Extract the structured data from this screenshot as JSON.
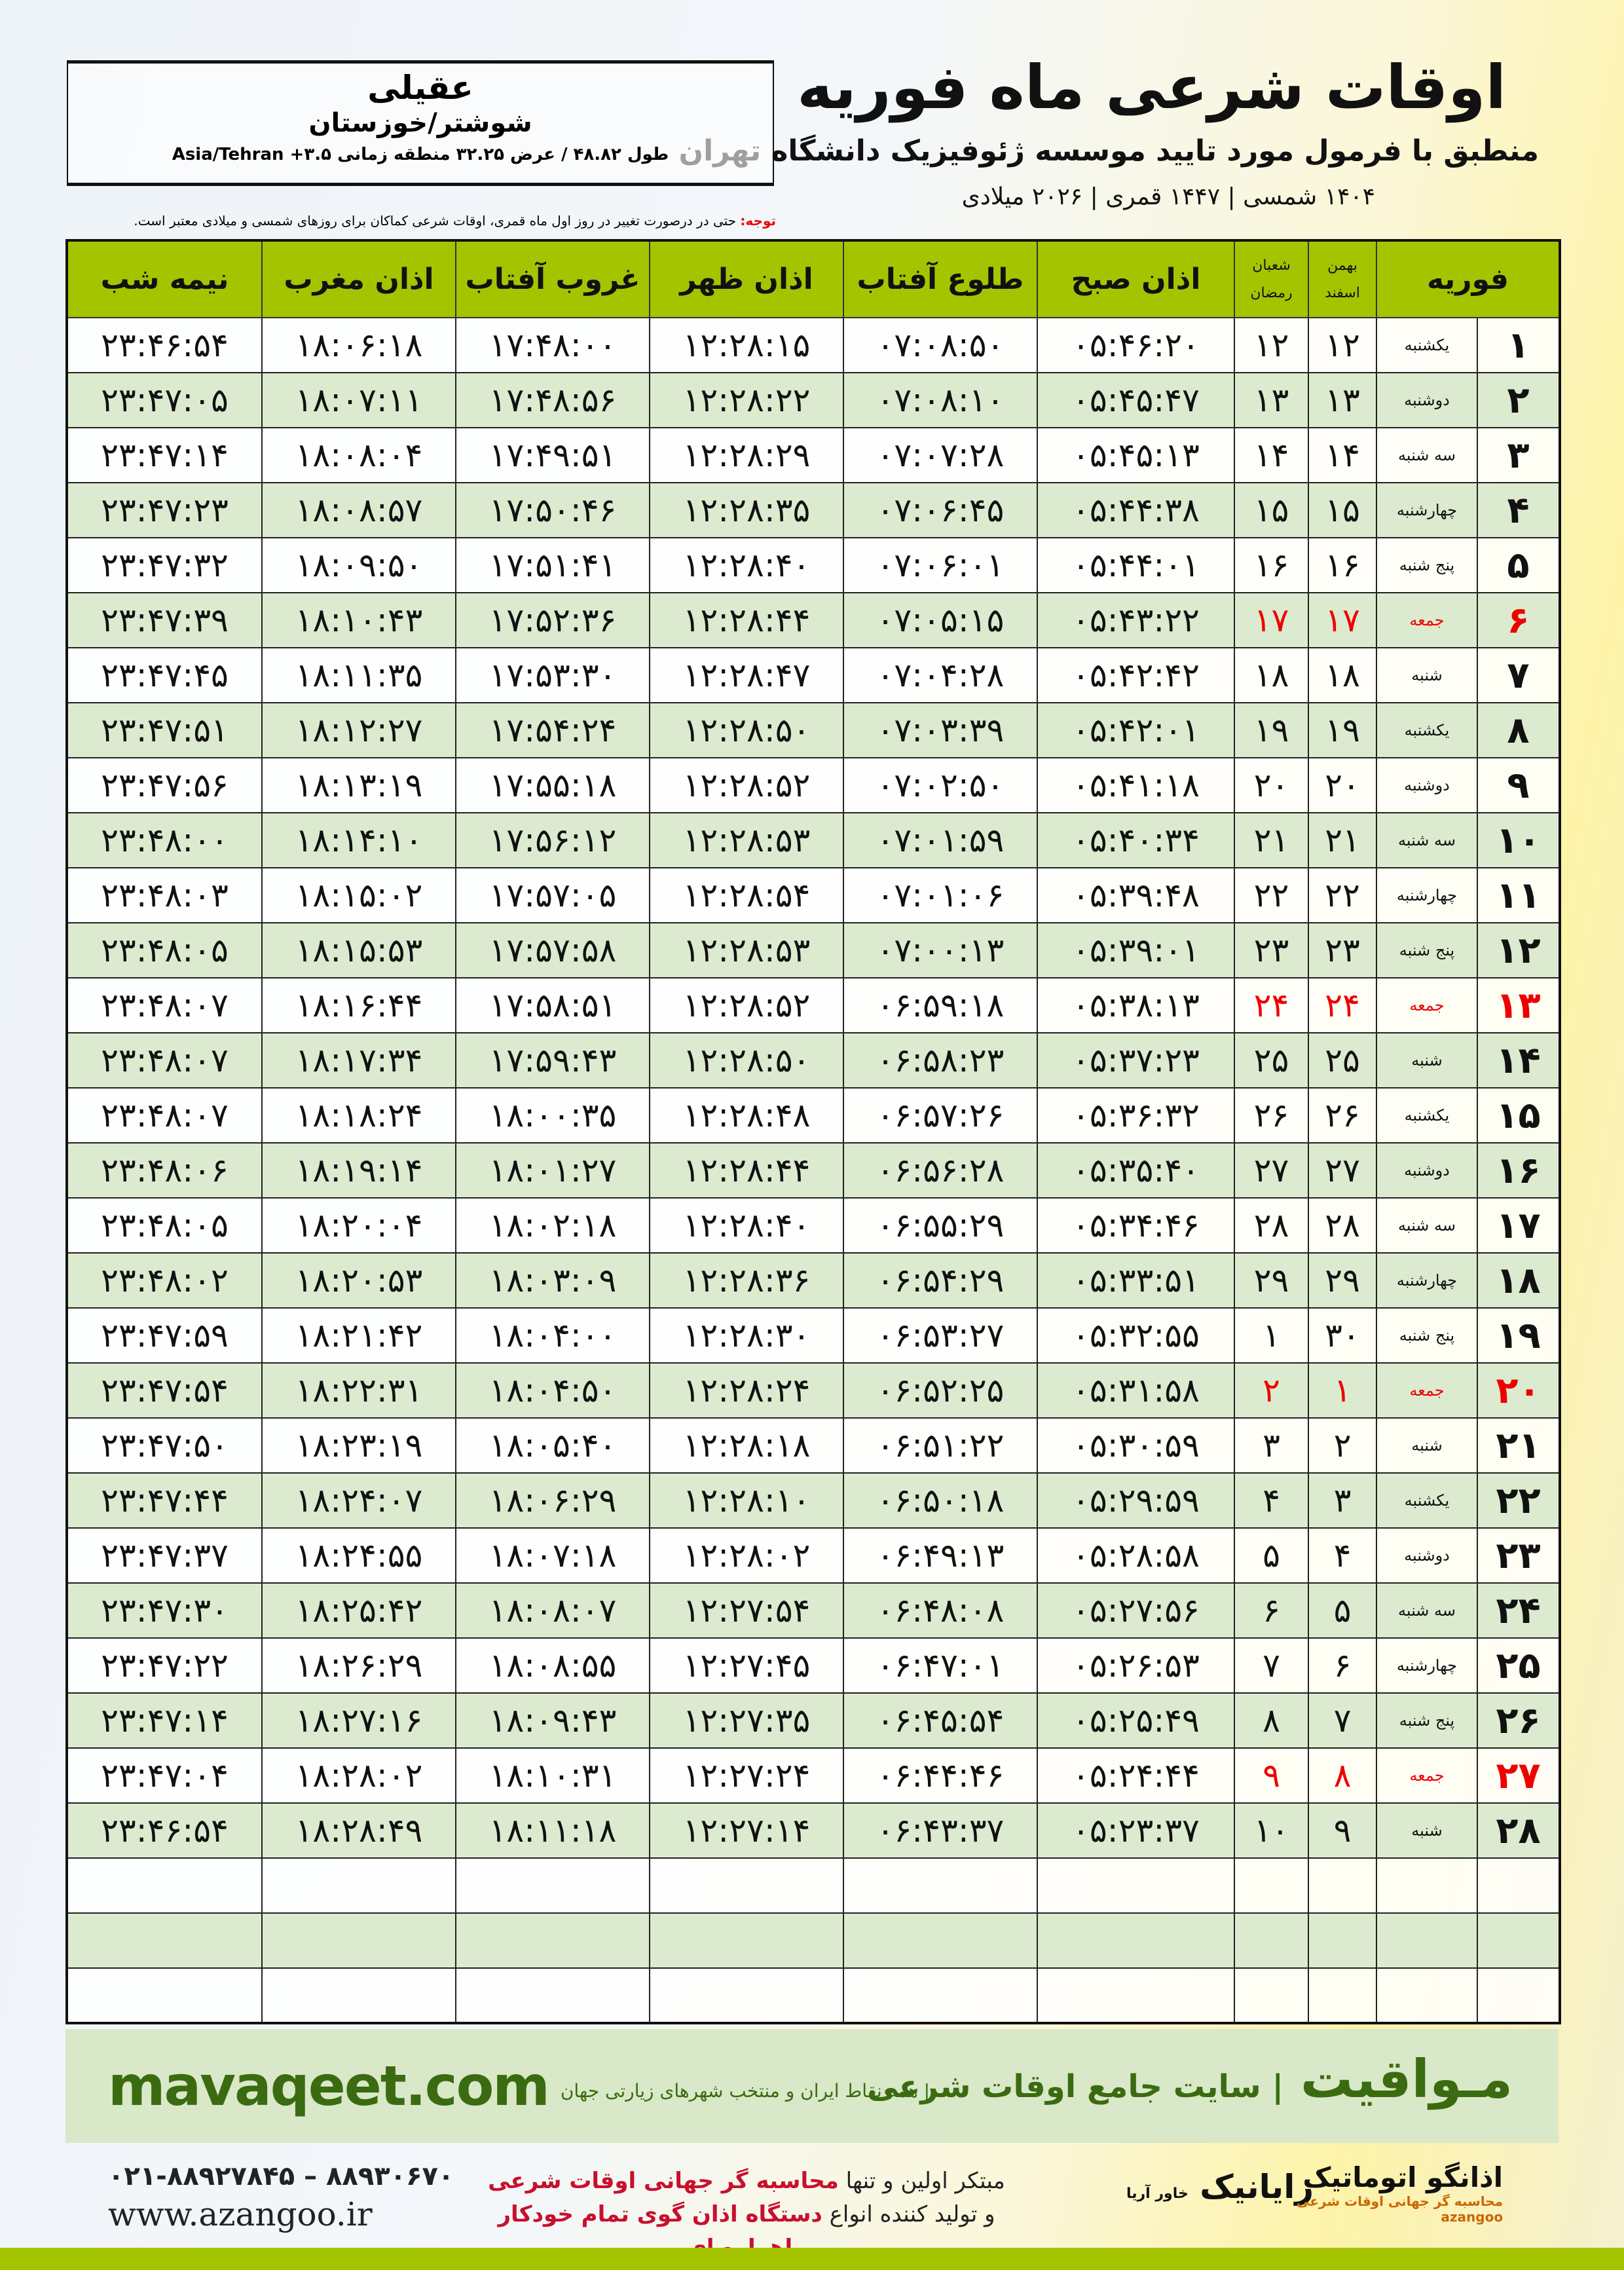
{
  "header": {
    "title": "اوقات شرعی ماه فوریه",
    "subtitle": "منطبق با فرمول مورد تایید موسسه ژئوفیزیک دانشگاه تهران",
    "dates": "۱۴۰۴ شمسی | ۱۴۴۷ قمری | ۲۰۲۶ میلادی"
  },
  "location": {
    "name": "عقیلی",
    "province": "شوشتر/خوزستان",
    "coords": "طول ۴۸.۸۲ / عرض ۳۲.۲۵ منطقه زمانی ۳.۵+ Asia/Tehran"
  },
  "note": {
    "label": "توجه:",
    "text": " حتی در درصورت تغییر در روز اول ماه قمری، اوقات شرعی کماکان برای روزهای شمسی و میلادی معتبر است."
  },
  "columns": {
    "month": "فوریه",
    "bahman": "بهمن",
    "esfand": "اسفند",
    "shaban": "شعبان",
    "ramadan": "رمضان",
    "sobh": "اذان صبح",
    "tolu": "طلوع آفتاب",
    "zohr": "اذان ظهر",
    "ghorub": "غروب آفتاب",
    "maghreb": "اذان مغرب",
    "nime": "نیمه شب"
  },
  "colors": {
    "header_green": "#a5c400",
    "row_green": "#dcebcf",
    "friday_red": "#e00000",
    "brand_green": "#3b6b10"
  },
  "rows": [
    [
      "۱",
      "یکشنبه",
      "۱۲",
      "۱۲",
      "۰۵:۴۶:۲۰",
      "۰۷:۰۸:۵۰",
      "۱۲:۲۸:۱۵",
      "۱۷:۴۸:۰۰",
      "۱۸:۰۶:۱۸",
      "۲۳:۴۶:۵۴"
    ],
    [
      "۲",
      "دوشنبه",
      "۱۳",
      "۱۳",
      "۰۵:۴۵:۴۷",
      "۰۷:۰۸:۱۰",
      "۱۲:۲۸:۲۲",
      "۱۷:۴۸:۵۶",
      "۱۸:۰۷:۱۱",
      "۲۳:۴۷:۰۵"
    ],
    [
      "۳",
      "سه شنبه",
      "۱۴",
      "۱۴",
      "۰۵:۴۵:۱۳",
      "۰۷:۰۷:۲۸",
      "۱۲:۲۸:۲۹",
      "۱۷:۴۹:۵۱",
      "۱۸:۰۸:۰۴",
      "۲۳:۴۷:۱۴"
    ],
    [
      "۴",
      "چهارشنبه",
      "۱۵",
      "۱۵",
      "۰۵:۴۴:۳۸",
      "۰۷:۰۶:۴۵",
      "۱۲:۲۸:۳۵",
      "۱۷:۵۰:۴۶",
      "۱۸:۰۸:۵۷",
      "۲۳:۴۷:۲۳"
    ],
    [
      "۵",
      "پنج شنبه",
      "۱۶",
      "۱۶",
      "۰۵:۴۴:۰۱",
      "۰۷:۰۶:۰۱",
      "۱۲:۲۸:۴۰",
      "۱۷:۵۱:۴۱",
      "۱۸:۰۹:۵۰",
      "۲۳:۴۷:۳۲"
    ],
    [
      "۶",
      "جمعه",
      "۱۷",
      "۱۷",
      "۰۵:۴۳:۲۲",
      "۰۷:۰۵:۱۵",
      "۱۲:۲۸:۴۴",
      "۱۷:۵۲:۳۶",
      "۱۸:۱۰:۴۳",
      "۲۳:۴۷:۳۹"
    ],
    [
      "۷",
      "شنبه",
      "۱۸",
      "۱۸",
      "۰۵:۴۲:۴۲",
      "۰۷:۰۴:۲۸",
      "۱۲:۲۸:۴۷",
      "۱۷:۵۳:۳۰",
      "۱۸:۱۱:۳۵",
      "۲۳:۴۷:۴۵"
    ],
    [
      "۸",
      "یکشنبه",
      "۱۹",
      "۱۹",
      "۰۵:۴۲:۰۱",
      "۰۷:۰۳:۳۹",
      "۱۲:۲۸:۵۰",
      "۱۷:۵۴:۲۴",
      "۱۸:۱۲:۲۷",
      "۲۳:۴۷:۵۱"
    ],
    [
      "۹",
      "دوشنبه",
      "۲۰",
      "۲۰",
      "۰۵:۴۱:۱۸",
      "۰۷:۰۲:۵۰",
      "۱۲:۲۸:۵۲",
      "۱۷:۵۵:۱۸",
      "۱۸:۱۳:۱۹",
      "۲۳:۴۷:۵۶"
    ],
    [
      "۱۰",
      "سه شنبه",
      "۲۱",
      "۲۱",
      "۰۵:۴۰:۳۴",
      "۰۷:۰۱:۵۹",
      "۱۲:۲۸:۵۳",
      "۱۷:۵۶:۱۲",
      "۱۸:۱۴:۱۰",
      "۲۳:۴۸:۰۰"
    ],
    [
      "۱۱",
      "چهارشنبه",
      "۲۲",
      "۲۲",
      "۰۵:۳۹:۴۸",
      "۰۷:۰۱:۰۶",
      "۱۲:۲۸:۵۴",
      "۱۷:۵۷:۰۵",
      "۱۸:۱۵:۰۲",
      "۲۳:۴۸:۰۳"
    ],
    [
      "۱۲",
      "پنج شنبه",
      "۲۳",
      "۲۳",
      "۰۵:۳۹:۰۱",
      "۰۷:۰۰:۱۳",
      "۱۲:۲۸:۵۳",
      "۱۷:۵۷:۵۸",
      "۱۸:۱۵:۵۳",
      "۲۳:۴۸:۰۵"
    ],
    [
      "۱۳",
      "جمعه",
      "۲۴",
      "۲۴",
      "۰۵:۳۸:۱۳",
      "۰۶:۵۹:۱۸",
      "۱۲:۲۸:۵۲",
      "۱۷:۵۸:۵۱",
      "۱۸:۱۶:۴۴",
      "۲۳:۴۸:۰۷"
    ],
    [
      "۱۴",
      "شنبه",
      "۲۵",
      "۲۵",
      "۰۵:۳۷:۲۳",
      "۰۶:۵۸:۲۳",
      "۱۲:۲۸:۵۰",
      "۱۷:۵۹:۴۳",
      "۱۸:۱۷:۳۴",
      "۲۳:۴۸:۰۷"
    ],
    [
      "۱۵",
      "یکشنبه",
      "۲۶",
      "۲۶",
      "۰۵:۳۶:۳۲",
      "۰۶:۵۷:۲۶",
      "۱۲:۲۸:۴۸",
      "۱۸:۰۰:۳۵",
      "۱۸:۱۸:۲۴",
      "۲۳:۴۸:۰۷"
    ],
    [
      "۱۶",
      "دوشنبه",
      "۲۷",
      "۲۷",
      "۰۵:۳۵:۴۰",
      "۰۶:۵۶:۲۸",
      "۱۲:۲۸:۴۴",
      "۱۸:۰۱:۲۷",
      "۱۸:۱۹:۱۴",
      "۲۳:۴۸:۰۶"
    ],
    [
      "۱۷",
      "سه شنبه",
      "۲۸",
      "۲۸",
      "۰۵:۳۴:۴۶",
      "۰۶:۵۵:۲۹",
      "۱۲:۲۸:۴۰",
      "۱۸:۰۲:۱۸",
      "۱۸:۲۰:۰۴",
      "۲۳:۴۸:۰۵"
    ],
    [
      "۱۸",
      "چهارشنبه",
      "۲۹",
      "۲۹",
      "۰۵:۳۳:۵۱",
      "۰۶:۵۴:۲۹",
      "۱۲:۲۸:۳۶",
      "۱۸:۰۳:۰۹",
      "۱۸:۲۰:۵۳",
      "۲۳:۴۸:۰۲"
    ],
    [
      "۱۹",
      "پنج شنبه",
      "۳۰",
      "۱",
      "۰۵:۳۲:۵۵",
      "۰۶:۵۳:۲۷",
      "۱۲:۲۸:۳۰",
      "۱۸:۰۴:۰۰",
      "۱۸:۲۱:۴۲",
      "۲۳:۴۷:۵۹"
    ],
    [
      "۲۰",
      "جمعه",
      "۱",
      "۲",
      "۰۵:۳۱:۵۸",
      "۰۶:۵۲:۲۵",
      "۱۲:۲۸:۲۴",
      "۱۸:۰۴:۵۰",
      "۱۸:۲۲:۳۱",
      "۲۳:۴۷:۵۴"
    ],
    [
      "۲۱",
      "شنبه",
      "۲",
      "۳",
      "۰۵:۳۰:۵۹",
      "۰۶:۵۱:۲۲",
      "۱۲:۲۸:۱۸",
      "۱۸:۰۵:۴۰",
      "۱۸:۲۳:۱۹",
      "۲۳:۴۷:۵۰"
    ],
    [
      "۲۲",
      "یکشنبه",
      "۳",
      "۴",
      "۰۵:۲۹:۵۹",
      "۰۶:۵۰:۱۸",
      "۱۲:۲۸:۱۰",
      "۱۸:۰۶:۲۹",
      "۱۸:۲۴:۰۷",
      "۲۳:۴۷:۴۴"
    ],
    [
      "۲۳",
      "دوشنبه",
      "۴",
      "۵",
      "۰۵:۲۸:۵۸",
      "۰۶:۴۹:۱۳",
      "۱۲:۲۸:۰۲",
      "۱۸:۰۷:۱۸",
      "۱۸:۲۴:۵۵",
      "۲۳:۴۷:۳۷"
    ],
    [
      "۲۴",
      "سه شنبه",
      "۵",
      "۶",
      "۰۵:۲۷:۵۶",
      "۰۶:۴۸:۰۸",
      "۱۲:۲۷:۵۴",
      "۱۸:۰۸:۰۷",
      "۱۸:۲۵:۴۲",
      "۲۳:۴۷:۳۰"
    ],
    [
      "۲۵",
      "چهارشنبه",
      "۶",
      "۷",
      "۰۵:۲۶:۵۳",
      "۰۶:۴۷:۰۱",
      "۱۲:۲۷:۴۵",
      "۱۸:۰۸:۵۵",
      "۱۸:۲۶:۲۹",
      "۲۳:۴۷:۲۲"
    ],
    [
      "۲۶",
      "پنج شنبه",
      "۷",
      "۸",
      "۰۵:۲۵:۴۹",
      "۰۶:۴۵:۵۴",
      "۱۲:۲۷:۳۵",
      "۱۸:۰۹:۴۳",
      "۱۸:۲۷:۱۶",
      "۲۳:۴۷:۱۴"
    ],
    [
      "۲۷",
      "جمعه",
      "۸",
      "۹",
      "۰۵:۲۴:۴۴",
      "۰۶:۴۴:۴۶",
      "۱۲:۲۷:۲۴",
      "۱۸:۱۰:۳۱",
      "۱۸:۲۸:۰۲",
      "۲۳:۴۷:۰۴"
    ],
    [
      "۲۸",
      "شنبه",
      "۹",
      "۱۰",
      "۰۵:۲۳:۳۷",
      "۰۶:۴۳:۳۷",
      "۱۲:۲۷:۱۴",
      "۱۸:۱۱:۱۸",
      "۱۸:۲۸:۴۹",
      "۲۳:۴۶:۵۴"
    ]
  ],
  "footer": {
    "site": "mavaqeet.com",
    "brand": "مـواقیت",
    "tagline": "| سایت جامع اوقات شرعی",
    "tagline2": "| همه نقاط ایران و منتخب شهرهای زیارتی جهان",
    "phone": "۰۲۱-۸۸۹۲۷۸۴۵ – ۸۸۹۳۰۶۷۰",
    "web": "www.azangoo.ir",
    "promo1a": "مبتکر اولین و تنها ",
    "promo1b": "محاسبه گر جهانی اوقات شرعی",
    "promo2a": "و تولید کننده انواع ",
    "promo2b": "دستگاه اذان گوی تمام خودکار ماهواره ای",
    "rayanik": "رایانیک",
    "rayanik_sub": "خاور آریا",
    "azangoo": "اذانگو اتوماتیک",
    "azangoo_sub": "محاسبه گر جهانی اوقات شرعی",
    "azangoo_en": "azangoo"
  }
}
